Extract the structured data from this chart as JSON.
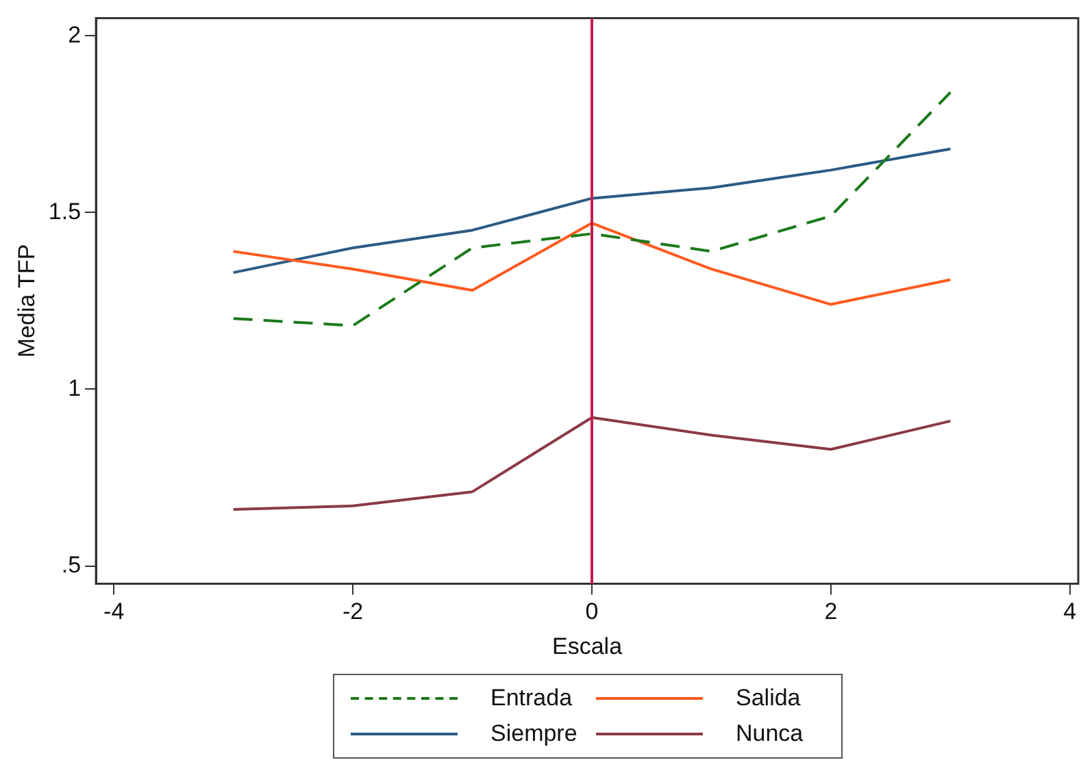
{
  "chart_data": {
    "type": "line",
    "xlabel": "Escala",
    "ylabel": "Media TFP",
    "x": [
      -3,
      -2,
      -1,
      0,
      1,
      2,
      3
    ],
    "series": [
      {
        "name": "Entrada",
        "color": "#1a7a1a",
        "line_style": "dashed",
        "values": [
          1.2,
          1.18,
          1.4,
          1.44,
          1.39,
          1.49,
          1.84
        ]
      },
      {
        "name": "Salida",
        "color": "#ff5a1f",
        "values": [
          1.39,
          1.34,
          1.28,
          1.47,
          1.34,
          1.24,
          1.31
        ]
      },
      {
        "name": "Siempre",
        "color": "#2b5b84",
        "values": [
          1.33,
          1.4,
          1.45,
          1.54,
          1.57,
          1.62,
          1.68
        ]
      },
      {
        "name": "Nunca",
        "color": "#8b3a45",
        "values": [
          0.66,
          0.67,
          0.71,
          0.92,
          0.87,
          0.83,
          0.91
        ]
      }
    ],
    "xlim": [
      -4.15,
      4.07
    ],
    "xticks": [
      -4,
      -2,
      0,
      2,
      4
    ],
    "ylim": [
      0.45,
      2.05
    ],
    "yticks": [
      {
        "value": 0.5,
        "label": ".5"
      },
      1,
      1.5,
      2
    ],
    "ref_lines": [
      {
        "axis": "x",
        "value": 0,
        "color": "#c41e4a"
      }
    ],
    "grid": false,
    "legend": "bottom",
    "marker": "none",
    "line_style": "solid"
  }
}
